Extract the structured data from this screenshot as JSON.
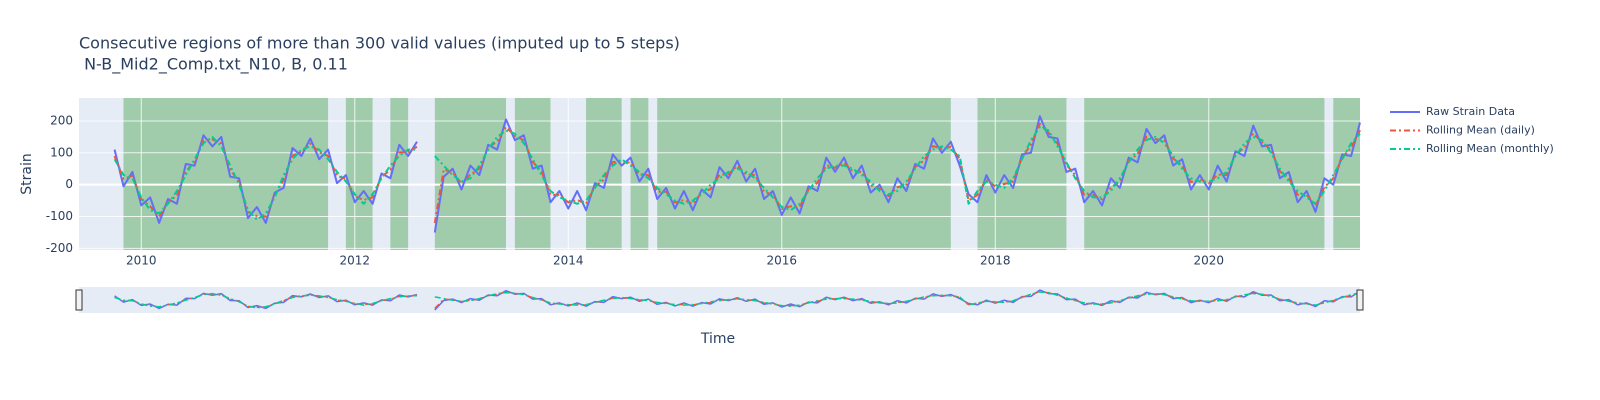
{
  "chart_data": {
    "type": "line",
    "title": "Consecutive regions of more than 300 valid values (imputed up to 5 steps)",
    "subtitle": " N-B_Mid2_Comp.txt_N10, B, 0.11",
    "x_label": "Time",
    "y_label": "Strain",
    "xlim": [
      "2009-06",
      "2021-06"
    ],
    "xticks": [
      "2010",
      "2012",
      "2014",
      "2016",
      "2018",
      "2020"
    ],
    "ylim": [
      -205,
      272
    ],
    "yticks": [
      -200,
      -100,
      0,
      100,
      200
    ],
    "grid": true,
    "legend": "right",
    "range_slider": true,
    "region_color": "rgba(0,128,0,0.3)",
    "regions": [
      {
        "start": "2009-11",
        "end": "2011-10"
      },
      {
        "start": "2011-12",
        "end": "2012-03"
      },
      {
        "start": "2012-05",
        "end": "2012-07"
      },
      {
        "start": "2012-10",
        "end": "2013-06"
      },
      {
        "start": "2013-07",
        "end": "2013-11"
      },
      {
        "start": "2014-03",
        "end": "2014-07"
      },
      {
        "start": "2014-08",
        "end": "2014-10"
      },
      {
        "start": "2014-11",
        "end": "2017-08"
      },
      {
        "start": "2017-11",
        "end": "2018-09"
      },
      {
        "start": "2018-11",
        "end": "2021-02"
      },
      {
        "start": "2021-03",
        "end": "2021-06"
      }
    ],
    "x": [
      "2009-10",
      "2009-11",
      "2009-12",
      "2010-01",
      "2010-02",
      "2010-03",
      "2010-04",
      "2010-05",
      "2010-06",
      "2010-07",
      "2010-08",
      "2010-09",
      "2010-10",
      "2010-11",
      "2010-12",
      "2011-01",
      "2011-02",
      "2011-03",
      "2011-04",
      "2011-05",
      "2011-06",
      "2011-07",
      "2011-08",
      "2011-09",
      "2011-10",
      "2011-11",
      "2011-12",
      "2012-01",
      "2012-02",
      "2012-03",
      "2012-04",
      "2012-05",
      "2012-06",
      "2012-07",
      "2012-08",
      "2012-09",
      "2012-10",
      "2012-11",
      "2012-12",
      "2013-01",
      "2013-02",
      "2013-03",
      "2013-04",
      "2013-05",
      "2013-06",
      "2013-07",
      "2013-08",
      "2013-09",
      "2013-10",
      "2013-11",
      "2013-12",
      "2014-01",
      "2014-02",
      "2014-03",
      "2014-04",
      "2014-05",
      "2014-06",
      "2014-07",
      "2014-08",
      "2014-09",
      "2014-10",
      "2014-11",
      "2014-12",
      "2015-01",
      "2015-02",
      "2015-03",
      "2015-04",
      "2015-05",
      "2015-06",
      "2015-07",
      "2015-08",
      "2015-09",
      "2015-10",
      "2015-11",
      "2015-12",
      "2016-01",
      "2016-02",
      "2016-03",
      "2016-04",
      "2016-05",
      "2016-06",
      "2016-07",
      "2016-08",
      "2016-09",
      "2016-10",
      "2016-11",
      "2016-12",
      "2017-01",
      "2017-02",
      "2017-03",
      "2017-04",
      "2017-05",
      "2017-06",
      "2017-07",
      "2017-08",
      "2017-09",
      "2017-10",
      "2017-11",
      "2017-12",
      "2018-01",
      "2018-02",
      "2018-03",
      "2018-04",
      "2018-05",
      "2018-06",
      "2018-07",
      "2018-08",
      "2018-09",
      "2018-10",
      "2018-11",
      "2018-12",
      "2019-01",
      "2019-02",
      "2019-03",
      "2019-04",
      "2019-05",
      "2019-06",
      "2019-07",
      "2019-08",
      "2019-09",
      "2019-10",
      "2019-11",
      "2019-12",
      "2020-01",
      "2020-02",
      "2020-03",
      "2020-04",
      "2020-05",
      "2020-06",
      "2020-07",
      "2020-08",
      "2020-09",
      "2020-10",
      "2020-11",
      "2020-12",
      "2021-01",
      "2021-02",
      "2021-03",
      "2021-04",
      "2021-05",
      "2021-06"
    ],
    "series": [
      {
        "name": "Raw Strain Data",
        "color": "#636efa",
        "dash": "solid",
        "values": [
          110,
          -5,
          40,
          -65,
          -40,
          -120,
          -45,
          -60,
          65,
          60,
          155,
          120,
          150,
          25,
          20,
          -105,
          -70,
          -120,
          -25,
          -10,
          115,
          90,
          145,
          80,
          110,
          5,
          30,
          -55,
          -20,
          -60,
          35,
          20,
          125,
          90,
          135,
          null,
          -150,
          25,
          50,
          -15,
          60,
          30,
          125,
          110,
          205,
          140,
          155,
          50,
          60,
          -55,
          -20,
          -75,
          -20,
          -80,
          5,
          -10,
          95,
          60,
          85,
          10,
          50,
          -45,
          -10,
          -75,
          -20,
          -80,
          -15,
          -40,
          55,
          20,
          75,
          10,
          50,
          -45,
          -20,
          -95,
          -40,
          -90,
          -5,
          -20,
          85,
          40,
          85,
          20,
          60,
          -25,
          0,
          -55,
          20,
          -20,
          65,
          50,
          145,
          100,
          135,
          60,
          -30,
          -55,
          30,
          -25,
          30,
          -10,
          95,
          100,
          215,
          150,
          145,
          40,
          50,
          -55,
          -20,
          -65,
          20,
          -10,
          85,
          70,
          175,
          130,
          155,
          60,
          80,
          -15,
          30,
          -15,
          60,
          10,
          105,
          90,
          185,
          120,
          125,
          20,
          40,
          -55,
          -20,
          -85,
          20,
          0,
          95,
          90,
          195
        ]
      },
      {
        "name": "Rolling Mean (daily)",
        "color": "#ef553b",
        "dash": "dashdot",
        "values": [
          90,
          18,
          28,
          -46,
          -68,
          -100,
          -55,
          -34,
          41,
          73,
          139,
          142,
          130,
          48,
          8,
          -86,
          -98,
          -100,
          -35,
          16,
          91,
          103,
          129,
          102,
          90,
          28,
          18,
          -36,
          -48,
          -40,
          25,
          46,
          101,
          103,
          119,
          null,
          -120,
          48,
          38,
          4,
          32,
          50,
          115,
          136,
          181,
          153,
          139,
          72,
          40,
          -32,
          -32,
          -56,
          -48,
          -60,
          -5,
          16,
          71,
          73,
          69,
          32,
          30,
          -22,
          -22,
          -56,
          -48,
          -60,
          -25,
          -14,
          31,
          33,
          59,
          32,
          30,
          -22,
          -32,
          -76,
          -68,
          -70,
          -15,
          6,
          61,
          53,
          69,
          42,
          40,
          -2,
          -12,
          -36,
          -8,
          0,
          55,
          76,
          121,
          113,
          119,
          82,
          -50,
          -32,
          18,
          -6,
          2,
          10,
          85,
          126,
          191,
          163,
          129,
          62,
          30,
          -32,
          -32,
          -46,
          -8,
          10,
          75,
          96,
          151,
          143,
          139,
          82,
          60,
          8,
          18,
          4,
          32,
          30,
          95,
          116,
          161,
          133,
          109,
          42,
          20,
          -32,
          -32,
          -66,
          -8,
          20,
          85,
          116,
          171
        ]
      },
      {
        "name": "Rolling Mean (monthly)",
        "color": "#00cc96",
        "dash": "dashdot",
        "values": [
          80,
          30,
          20,
          -40,
          -80,
          -90,
          -60,
          -20,
          30,
          80,
          130,
          150,
          120,
          60,
          0,
          -80,
          -110,
          -90,
          -40,
          30,
          80,
          110,
          120,
          110,
          80,
          40,
          10,
          -30,
          -60,
          -30,
          20,
          60,
          90,
          110,
          110,
          null,
          90,
          60,
          30,
          10,
          20,
          60,
          110,
          150,
          170,
          160,
          130,
          80,
          30,
          -20,
          -40,
          -50,
          -60,
          -50,
          -10,
          30,
          60,
          80,
          60,
          40,
          20,
          -10,
          -30,
          -50,
          -60,
          -50,
          -30,
          0,
          20,
          40,
          50,
          40,
          20,
          -10,
          -40,
          -70,
          -80,
          -60,
          -20,
          20,
          50,
          60,
          60,
          50,
          30,
          10,
          -20,
          -30,
          -20,
          10,
          50,
          90,
          110,
          120,
          110,
          90,
          -60,
          -20,
          10,
          0,
          -10,
          20,
          80,
          140,
          180,
          170,
          120,
          70,
          20,
          -20,
          -40,
          -40,
          -20,
          20,
          70,
          110,
          140,
          150,
          130,
          90,
          50,
          20,
          10,
          10,
          20,
          40,
          90,
          130,
          150,
          140,
          100,
          50,
          10,
          -20,
          -40,
          -60,
          -20,
          30,
          80,
          130,
          160
        ]
      }
    ]
  }
}
